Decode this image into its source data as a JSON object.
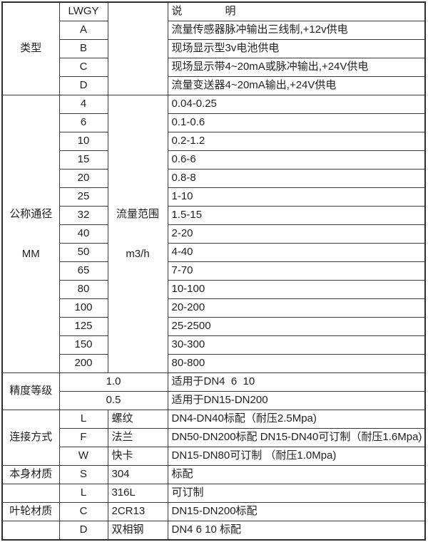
{
  "colors": {
    "background": "#ffffff",
    "border": "#3a3a3a",
    "text": "#1f1f1f"
  },
  "type_section": {
    "label": "类型",
    "model": "LWGY",
    "desc_header": "说　　　　明",
    "rows": [
      {
        "code": "A",
        "desc": "流量传感器脉冲输出三线制,+12v供电"
      },
      {
        "code": "B",
        "desc": "现场显示型3v电池供电"
      },
      {
        "code": "C",
        "desc": "现场显示带4~20mA或脉冲输出,+24V供电"
      },
      {
        "code": "D",
        "desc": "流量变送器4~20mA输出,+24V供电"
      }
    ]
  },
  "diameter_section": {
    "label_line1": "公称通径",
    "label_line2": "MM",
    "range_label_line1": "流量范围",
    "range_label_line2": "m3/h",
    "rows": [
      {
        "dn": "4",
        "range": "0.04-0.25"
      },
      {
        "dn": "6",
        "range": "0.1-0.6"
      },
      {
        "dn": "10",
        "range": "0.2-1.2"
      },
      {
        "dn": "15",
        "range": "0.6-6"
      },
      {
        "dn": "20",
        "range": "0.8-8"
      },
      {
        "dn": "25",
        "range": "1-10"
      },
      {
        "dn": "32",
        "range": "1.5-15"
      },
      {
        "dn": "40",
        "range": "2-20"
      },
      {
        "dn": "50",
        "range": "4-40"
      },
      {
        "dn": "65",
        "range": "7-70"
      },
      {
        "dn": "80",
        "range": "10-100"
      },
      {
        "dn": "100",
        "range": "20-200"
      },
      {
        "dn": "125",
        "range": "25-2500"
      },
      {
        "dn": "150",
        "range": "30-300"
      },
      {
        "dn": "200",
        "range": "80-800"
      }
    ]
  },
  "accuracy_section": {
    "label": "精度等级",
    "rows": [
      {
        "grade": "1.0",
        "desc": "适用于DN4  6  10"
      },
      {
        "grade": "0.5",
        "desc": "适用于DN15-DN200"
      }
    ]
  },
  "connection_section": {
    "label": "连接方式",
    "rows": [
      {
        "code": "L",
        "name": "螺纹",
        "desc": "DN4-DN40标配（耐压2.5Mpa)"
      },
      {
        "code": "F",
        "name": "法兰",
        "desc": "DN50-DN200标配 DN15-DN40可订制（耐压1.6Mpa)"
      },
      {
        "code": "W",
        "name": "快卡",
        "desc": "DN15-DN80可订制 （耐压1.0Mpa)"
      }
    ]
  },
  "material_section": {
    "rows": [
      {
        "label": "本身材质",
        "code": "S",
        "name": "304",
        "desc": "标配"
      },
      {
        "label": "",
        "code": "L",
        "name": "316L",
        "desc": "可订制"
      },
      {
        "label": "叶轮材质",
        "code": "C",
        "name": "2CR13",
        "desc": "DN15-DN200标配"
      },
      {
        "label": "",
        "code": "D",
        "name": "双相钢",
        "desc": "DN4 6 10 标配"
      }
    ]
  }
}
